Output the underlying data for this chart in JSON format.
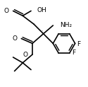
{
  "bg_color": "#ffffff",
  "line_color": "#000000",
  "lw": 1.2,
  "fs": 6.5
}
